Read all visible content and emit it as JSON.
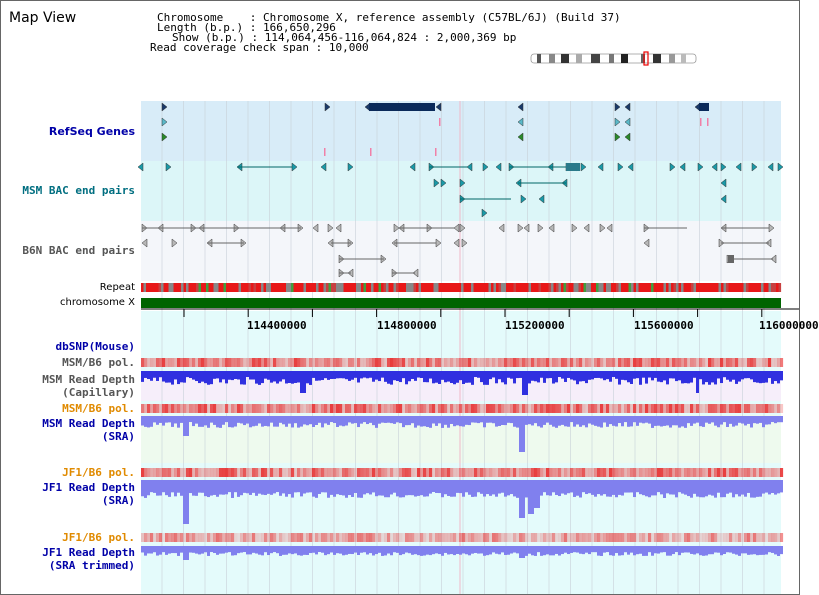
{
  "page_title": "Map View",
  "info": {
    "chromosome_label": "Chromosome",
    "chromosome_value": "Chromosome X, reference assembly (C57BL/6J) (Build 37)",
    "length_label": "Length (b.p.)",
    "length_value": "166,650,296",
    "show_label": "Show (b.p.)",
    "show_value": "114,064,456-116,064,824 : 2,000,369 bp",
    "span_label": "Read coverage check span",
    "span_value": "10,000"
  },
  "tracks": {
    "refseq": "RefSeq Genes",
    "msm_bac": "MSM BAC end pairs",
    "b6n_bac": "B6N BAC end pairs",
    "repeat": "Repeat",
    "chromosome": "chromosome X",
    "dbsnp": "dbSNP(Mouse)",
    "msm_b6_pol_1": "MSM/B6 pol.",
    "msm_depth_cap_1": "MSM Read Depth",
    "msm_depth_cap_2": "(Capillary)",
    "msm_b6_pol_2": "MSM/B6 pol.",
    "msm_depth_sra_1": "MSM Read Depth",
    "msm_depth_sra_2": "(SRA)",
    "jf1_b6_pol_1": "JF1/B6 pol.",
    "jf1_depth_sra_1": "JF1 Read Depth",
    "jf1_depth_sra_2": "(SRA)",
    "jf1_b6_pol_2": "JF1/B6 pol.",
    "jf1_depth_trim_1": "JF1 Read Depth",
    "jf1_depth_trim_2": "(SRA trimmed)"
  },
  "axis": {
    "ticks": [
      "114400000",
      "114800000",
      "115200000",
      "115600000",
      "116000000"
    ]
  },
  "colors": {
    "refseq_bg": "#d8ecf8",
    "msm_bac_bg": "#dcf6f8",
    "b6n_bac_bg": "#f4f6fa",
    "lower_bg": "#e4fbfb",
    "chromosome_bar": "#006400",
    "depth_blue": "#3030e0",
    "depth_light": "#8080ee"
  }
}
